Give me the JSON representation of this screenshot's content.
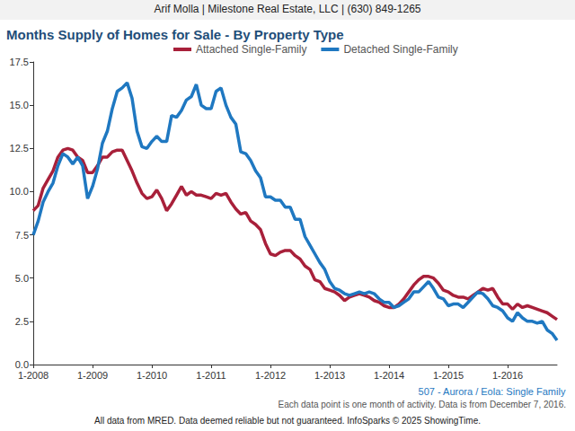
{
  "chart_data": {
    "type": "line",
    "header": "Arif Molla | Milestone Real Estate, LLC | (630) 849-1265",
    "title": "Months Supply of Homes for Sale - By Property Type",
    "annotations": [
      {
        "text": "507 - Aurora / Eola: Single Family",
        "color": "#1f78c1"
      },
      {
        "text": "Each data point is one month of activity. Data is from December 7, 2016.",
        "color": "#555555"
      },
      {
        "text": "All data from MRED. Data deemed reliable but not guaranteed. InfoSparks © 2025 ShowingTime.",
        "color": "#222222"
      }
    ],
    "legend": "top",
    "grid": false,
    "categories": [
      "1-2008",
      null,
      null,
      null,
      null,
      null,
      null,
      null,
      null,
      null,
      null,
      null,
      "1-2009",
      null,
      null,
      null,
      null,
      null,
      null,
      null,
      null,
      null,
      null,
      null,
      "1-2010",
      null,
      null,
      null,
      null,
      null,
      null,
      null,
      null,
      null,
      null,
      null,
      "1-2011",
      null,
      null,
      null,
      null,
      null,
      null,
      null,
      null,
      null,
      null,
      null,
      "1-2012",
      null,
      null,
      null,
      null,
      null,
      null,
      null,
      null,
      null,
      null,
      null,
      "1-2013",
      null,
      null,
      null,
      null,
      null,
      null,
      null,
      null,
      null,
      null,
      null,
      "1-2014",
      null,
      null,
      null,
      null,
      null,
      null,
      null,
      null,
      null,
      null,
      null,
      "1-2015",
      null,
      null,
      null,
      null,
      null,
      null,
      null,
      null,
      null,
      null,
      null,
      "1-2016",
      null,
      null,
      null,
      null,
      null,
      null,
      null,
      null,
      null,
      null
    ],
    "series": [
      {
        "name": "Attached Single-Family",
        "color": "#a8203a",
        "values": [
          8.9,
          9.2,
          10.2,
          10.7,
          11.2,
          12.0,
          12.4,
          12.5,
          12.4,
          12.0,
          11.8,
          11.1,
          11.1,
          11.5,
          12.0,
          12.0,
          12.3,
          12.4,
          12.4,
          11.8,
          11.2,
          10.5,
          9.9,
          9.6,
          9.7,
          10.1,
          9.6,
          8.9,
          9.3,
          9.8,
          10.3,
          9.8,
          10.0,
          9.8,
          9.8,
          9.7,
          9.6,
          9.9,
          9.8,
          9.9,
          9.4,
          9.0,
          8.7,
          8.8,
          8.3,
          8.1,
          7.8,
          7.0,
          6.4,
          6.3,
          6.5,
          6.6,
          6.6,
          6.3,
          6.1,
          5.7,
          5.5,
          4.9,
          4.8,
          4.4,
          4.3,
          4.2,
          4.0,
          3.7,
          3.9,
          4.0,
          4.1,
          4.0,
          3.9,
          3.7,
          3.6,
          3.4,
          3.3,
          3.3,
          3.5,
          3.8,
          4.2,
          4.6,
          4.9,
          5.1,
          5.1,
          5.0,
          4.7,
          4.3,
          4.2,
          4.0,
          3.9,
          3.9,
          3.8,
          4.0,
          4.2,
          4.4,
          4.3,
          4.4,
          3.9,
          3.5,
          3.5,
          3.2,
          3.5,
          3.3,
          3.4,
          3.3,
          3.2,
          3.1,
          3.0,
          2.8,
          2.6
        ]
      },
      {
        "name": "Detached Single-Family",
        "color": "#1f78c1",
        "values": [
          7.5,
          8.3,
          9.4,
          10.0,
          10.5,
          11.5,
          12.2,
          12.0,
          11.6,
          12.0,
          11.5,
          9.6,
          10.3,
          11.3,
          12.8,
          13.5,
          14.8,
          15.8,
          16.0,
          16.3,
          15.4,
          13.5,
          12.6,
          12.5,
          12.9,
          13.2,
          12.9,
          12.9,
          14.4,
          14.3,
          14.7,
          15.3,
          15.5,
          16.2,
          15.0,
          14.8,
          14.8,
          15.8,
          16.0,
          15.0,
          14.3,
          13.9,
          12.3,
          12.2,
          11.8,
          11.2,
          10.8,
          9.7,
          9.7,
          9.5,
          9.5,
          9.1,
          9.1,
          8.4,
          8.4,
          7.4,
          6.9,
          6.4,
          5.9,
          5.5,
          4.8,
          4.4,
          4.3,
          4.1,
          4.0,
          4.1,
          4.2,
          4.1,
          4.2,
          4.1,
          3.8,
          3.6,
          3.6,
          3.3,
          3.4,
          3.6,
          3.8,
          4.2,
          4.2,
          4.5,
          4.8,
          4.4,
          3.9,
          3.8,
          3.4,
          3.5,
          3.5,
          3.3,
          3.6,
          3.9,
          4.2,
          4.1,
          3.8,
          3.4,
          3.3,
          3.1,
          2.7,
          2.5,
          3.0,
          2.7,
          2.5,
          2.5,
          2.4,
          2.5,
          2.0,
          1.8,
          1.4
        ]
      }
    ],
    "ylim": [
      0,
      17.5
    ],
    "yticks": [
      {
        "value": 0,
        "label": "0.0"
      },
      2.5,
      {
        "value": 5,
        "label": "5.0"
      },
      7.5,
      {
        "value": 10,
        "label": "10.0"
      },
      12.5,
      {
        "value": 15,
        "label": "15.0"
      },
      17.5
    ]
  }
}
